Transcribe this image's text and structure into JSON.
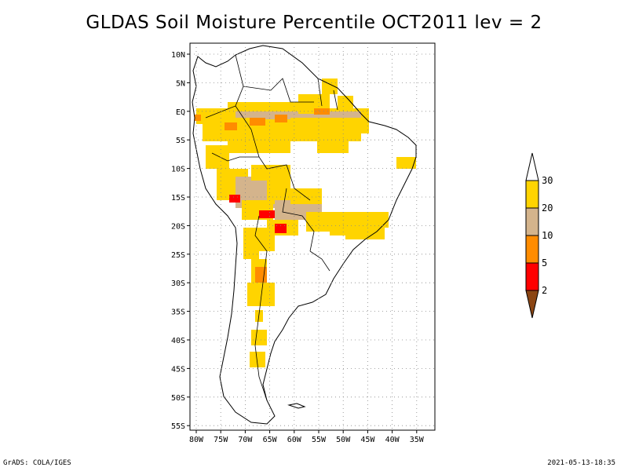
{
  "title": "GLDAS Soil Moisture Percentile OCT2011 lev = 2",
  "footer": {
    "left": "GrADS: COLA/IGES",
    "right": "2021-05-13-18:35"
  },
  "map": {
    "lat_labels": [
      "10N",
      "5N",
      "EQ",
      "5S",
      "10S",
      "15S",
      "20S",
      "25S",
      "30S",
      "35S",
      "40S",
      "45S",
      "50S",
      "55S"
    ],
    "lon_labels": [
      "80W",
      "75W",
      "70W",
      "65W",
      "60W",
      "55W",
      "50W",
      "45W",
      "40W",
      "35W"
    ]
  },
  "legend": {
    "labels": [
      "30",
      "20",
      "10",
      "5",
      "2"
    ],
    "colors": [
      "#ffd400",
      "#d4b48c",
      "#ff8c00",
      "#ff0000",
      "#8b4513"
    ],
    "top_cap_color": "#ffffff"
  },
  "colors": {
    "yellow": "#ffd400",
    "tan": "#d4b48c",
    "orange": "#ff8c00",
    "red": "#ff0000"
  }
}
